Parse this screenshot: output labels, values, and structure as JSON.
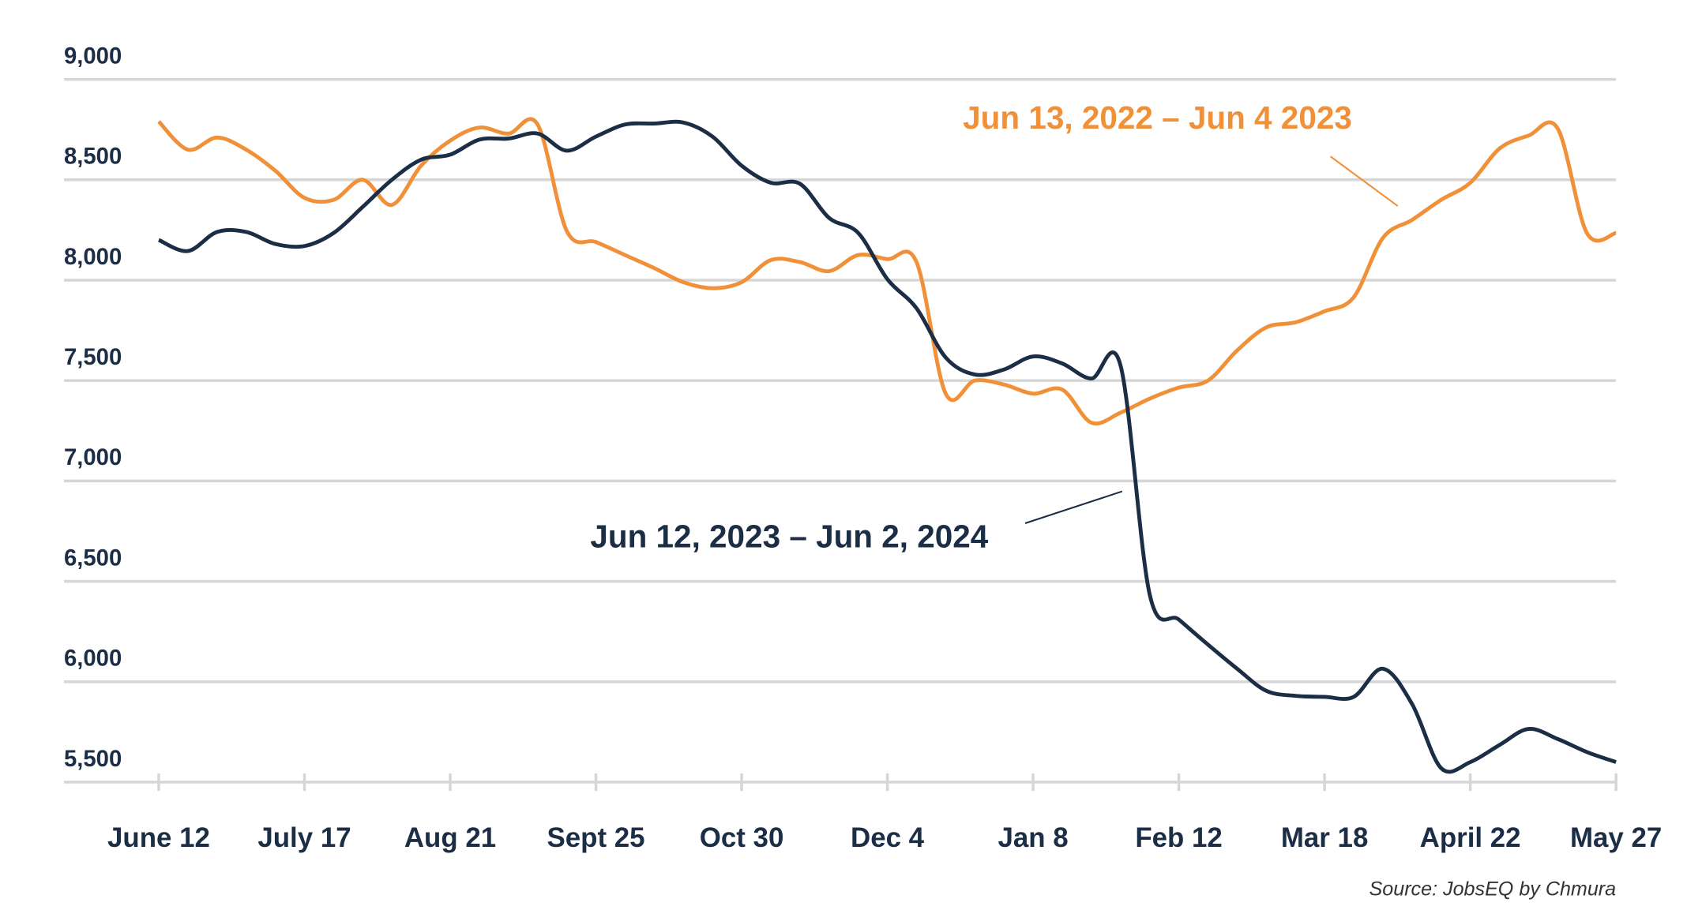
{
  "chart_data": {
    "type": "line",
    "categories": [
      "June 12",
      null,
      null,
      null,
      null,
      "July 17",
      null,
      null,
      null,
      null,
      "Aug 21",
      null,
      null,
      null,
      null,
      "Sept 25",
      null,
      null,
      null,
      null,
      "Oct 30",
      null,
      null,
      null,
      null,
      "Dec 4",
      null,
      null,
      null,
      null,
      "Jan 8",
      null,
      null,
      null,
      null,
      "Feb 12",
      null,
      null,
      null,
      null,
      "Mar 18",
      null,
      null,
      null,
      null,
      "April 22",
      null,
      null,
      null,
      null,
      "May 27"
    ],
    "series": [
      {
        "name": "Jun 13, 2022 – Jun 4 2023",
        "color": "#f0913a",
        "values": [
          8790,
          8650,
          8710,
          8650,
          8545,
          8410,
          8400,
          8500,
          8375,
          8570,
          8695,
          8760,
          8730,
          8775,
          8245,
          8190,
          8125,
          8060,
          7990,
          7960,
          7990,
          8100,
          8090,
          8045,
          8125,
          8105,
          8090,
          7435,
          7500,
          7480,
          7435,
          7455,
          7290,
          7340,
          7410,
          7465,
          7500,
          7650,
          7765,
          7790,
          7845,
          7915,
          8210,
          8300,
          8400,
          8485,
          8655,
          8720,
          8755,
          8235,
          8235
        ]
      },
      {
        "name": "Jun 12, 2023 – Jun 2, 2024",
        "color": "#1b2e45",
        "values": [
          8200,
          8145,
          8240,
          8240,
          8180,
          8170,
          8235,
          8365,
          8500,
          8600,
          8625,
          8700,
          8705,
          8730,
          8645,
          8715,
          8775,
          8780,
          8785,
          8715,
          8570,
          8485,
          8480,
          8310,
          8235,
          8005,
          7860,
          7615,
          7530,
          7555,
          7620,
          7585,
          7510,
          7575,
          6435,
          6310,
          6185,
          6065,
          5955,
          5930,
          5925,
          5925,
          6065,
          5890,
          5570,
          5600,
          5685,
          5765,
          5715,
          5650,
          5600
        ]
      }
    ],
    "ylim": [
      5500,
      9000
    ],
    "yticks": [
      {
        "value": 5500,
        "label": "5,500"
      },
      {
        "value": 6000,
        "label": "6,000"
      },
      {
        "value": 6500,
        "label": "6,500"
      },
      {
        "value": 7000,
        "label": "7,000"
      },
      {
        "value": 7500,
        "label": "7,500"
      },
      {
        "value": 8000,
        "label": "8,000"
      },
      {
        "value": 8500,
        "label": "8,500"
      },
      {
        "value": 9000,
        "label": "9,000"
      }
    ],
    "grid": true,
    "source": "Source: JobsEQ by Chmura"
  }
}
